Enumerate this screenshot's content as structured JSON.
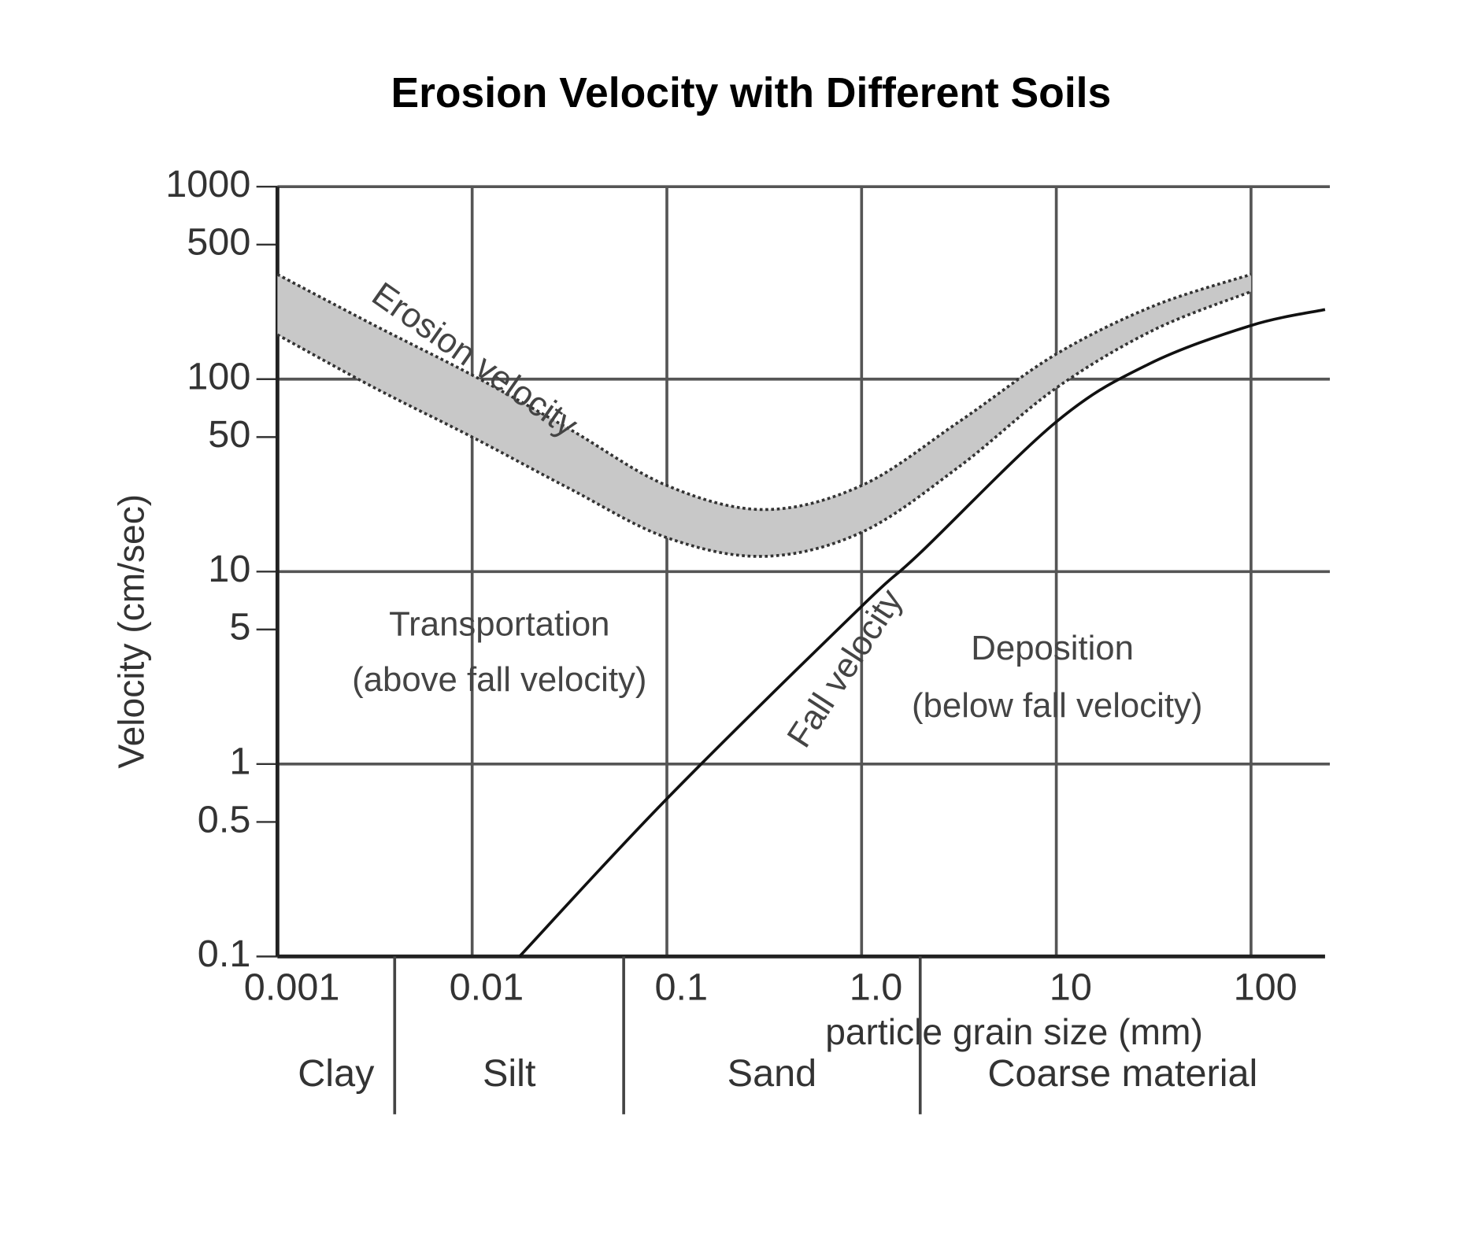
{
  "chart_data": {
    "type": "line",
    "title": "Erosion Velocity with Different Soils",
    "x_label": "particle grain size (mm)",
    "y_label": "Velocity (cm/sec)",
    "xscale": "log",
    "yscale": "log",
    "grid": true,
    "xlim": [
      0.001,
      240
    ],
    "ylim": [
      0.1,
      1000
    ],
    "xticks": [
      0.001,
      0.01,
      0.1,
      {
        "value": 1,
        "label": "1.0"
      },
      10,
      100
    ],
    "yticks": [
      0.1,
      0.5,
      1,
      5,
      10,
      50,
      100,
      500,
      1000
    ],
    "series": [
      {
        "name": "Erosion velocity",
        "style": "band",
        "color": "#c8c8c8",
        "x": [
          0.001,
          0.00316,
          0.01,
          0.0316,
          0.1,
          0.316,
          1,
          3.16,
          10,
          31.6,
          100
        ],
        "values": [
          350,
          190,
          105,
          55,
          28,
          21,
          28,
          60,
          135,
          240,
          350
        ],
        "low": [
          170,
          90,
          50,
          27,
          15,
          12,
          16,
          35,
          90,
          180,
          285
        ]
      },
      {
        "name": "Fall velocity",
        "style": "solid",
        "color": "#111111",
        "x": [
          0.0175,
          0.1,
          1,
          2,
          10,
          30,
          100,
          240
        ],
        "values": [
          0.1,
          0.66,
          6.6,
          12.5,
          60,
          120,
          190,
          230
        ]
      }
    ],
    "annotations": [
      "Transportation",
      "(above fall velocity)",
      "Deposition",
      "(below fall velocity)"
    ],
    "regions": {
      "boundaries": [
        0.004,
        0.06,
        2
      ],
      "labels": [
        "Clay",
        "Silt",
        "Sand",
        "Coarse material"
      ]
    }
  }
}
